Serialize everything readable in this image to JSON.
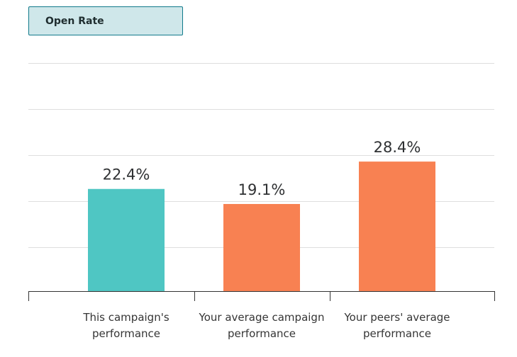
{
  "tab": {
    "label": "Open Rate"
  },
  "colors": {
    "this_campaign": "#4fc6c3",
    "comparison": "#f88152",
    "grid": "#dedede",
    "axis": "#333333",
    "tab_background": "#cfe7ea",
    "tab_border": "#117a8b"
  },
  "chart_data": {
    "type": "bar",
    "title": "Open Rate",
    "categories": [
      [
        "This campaign's",
        "performance"
      ],
      [
        "Your average campaign",
        "performance"
      ],
      [
        "Your peers' average",
        "performance"
      ]
    ],
    "values": [
      22.4,
      19.1,
      28.4
    ],
    "data_labels": [
      "22.4%",
      "19.1%",
      "28.4%"
    ],
    "bar_colors": [
      "#4fc6c3",
      "#f88152",
      "#f88152"
    ],
    "ylim": [
      0,
      50
    ],
    "grid": true,
    "xlabel": "",
    "ylabel": ""
  }
}
